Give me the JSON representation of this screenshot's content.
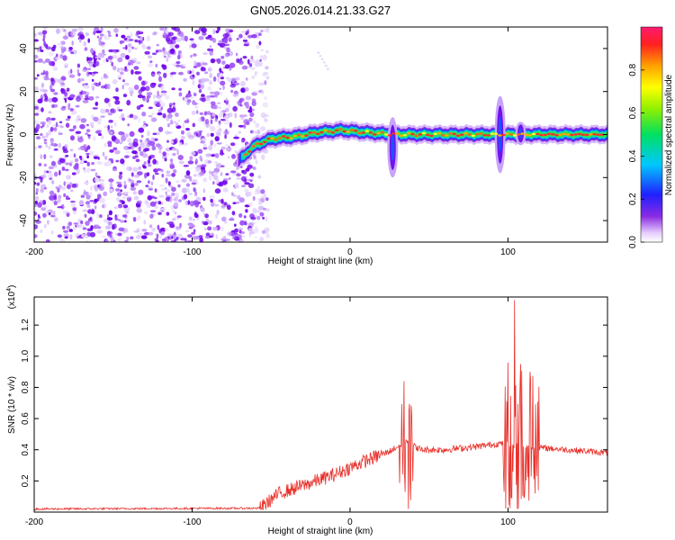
{
  "title": "GN05.2026.014.21.33.G27",
  "chart_data": [
    {
      "type": "heatmap",
      "name": "spectrogram",
      "xlabel": "Height of straight line (km)",
      "ylabel": "Frequency (Hz)",
      "xlim": [
        -200,
        163
      ],
      "ylim": [
        -50,
        50
      ],
      "xticks": [
        -200,
        -100,
        0,
        100
      ],
      "yticks": [
        -40,
        -20,
        0,
        20,
        40
      ],
      "colorbar": {
        "label": "Normalized spectral amplitude",
        "range": [
          0,
          1
        ],
        "ticks": [
          0.0,
          0.2,
          0.4,
          0.6,
          0.8
        ],
        "tick_labels": [
          "0.0",
          "0.2",
          "0.4",
          "0.6",
          "0.8"
        ]
      },
      "noise_region_x": [
        -200,
        -55
      ],
      "signal_track": [
        {
          "x": -72,
          "freq": -13
        },
        {
          "x": -60,
          "freq": -5
        },
        {
          "x": -50,
          "freq": -2
        },
        {
          "x": -35,
          "freq": -1
        },
        {
          "x": -20,
          "freq": 1
        },
        {
          "x": -5,
          "freq": 2
        },
        {
          "x": 10,
          "freq": 1
        },
        {
          "x": 28,
          "freq": 0
        },
        {
          "x": 50,
          "freq": 0
        },
        {
          "x": 80,
          "freq": 0
        },
        {
          "x": 95,
          "freq": 0
        },
        {
          "x": 110,
          "freq": 0
        },
        {
          "x": 163,
          "freq": 0
        }
      ],
      "bursts": [
        {
          "x": 27,
          "freq_min": -20,
          "freq_max": 8
        },
        {
          "x": 95,
          "freq_min": -18,
          "freq_max": 18
        },
        {
          "x": 108,
          "freq_min": -5,
          "freq_max": 6
        }
      ]
    },
    {
      "type": "line",
      "name": "snr",
      "xlabel": "Height of straight line (km)",
      "ylabel": "SNR (10 * v/v)",
      "y_scale_label": "(x10",
      "y_scale_exp": "4",
      "y_scale_close": ")",
      "xlim": [
        -200,
        163
      ],
      "ylim": [
        0,
        1.38
      ],
      "xticks": [
        -200,
        -100,
        0,
        100
      ],
      "yticks": [
        0.2,
        0.4,
        0.6,
        0.8,
        1.0,
        1.2
      ],
      "ytick_labels": [
        "0.2",
        "0.4",
        "0.6",
        "0.8",
        "1.0",
        "1.2"
      ],
      "color": "#e8302a",
      "envelope": [
        {
          "x": -200,
          "y": 0.02
        },
        {
          "x": -57,
          "y": 0.025
        },
        {
          "x": -45,
          "y": 0.12
        },
        {
          "x": -30,
          "y": 0.17
        },
        {
          "x": -10,
          "y": 0.24
        },
        {
          "x": 10,
          "y": 0.33
        },
        {
          "x": 25,
          "y": 0.39
        },
        {
          "x": 35,
          "y": 0.45
        },
        {
          "x": 45,
          "y": 0.4
        },
        {
          "x": 60,
          "y": 0.4
        },
        {
          "x": 80,
          "y": 0.42
        },
        {
          "x": 95,
          "y": 0.44
        },
        {
          "x": 110,
          "y": 0.42
        },
        {
          "x": 125,
          "y": 0.41
        },
        {
          "x": 163,
          "y": 0.38
        }
      ],
      "spikes": [
        {
          "x": 34,
          "y": 0.84
        },
        {
          "x": 37,
          "y": 0.02
        },
        {
          "x": 100,
          "y": 0.96
        },
        {
          "x": 104,
          "y": 1.36
        },
        {
          "x": 106,
          "y": 0.02
        },
        {
          "x": 108,
          "y": 0.95
        },
        {
          "x": 114,
          "y": 0.9
        },
        {
          "x": 117,
          "y": 0.12
        }
      ]
    }
  ]
}
